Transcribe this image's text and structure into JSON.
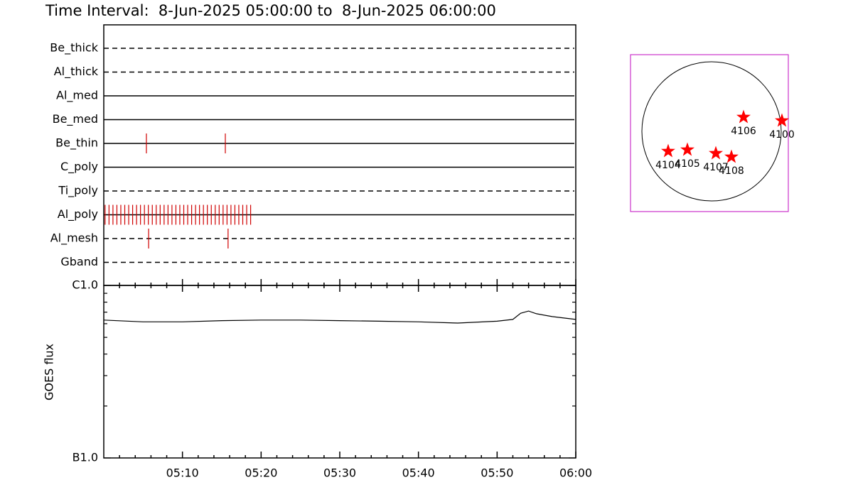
{
  "chart_data": [
    {
      "type": "timeline",
      "title": "Time Interval:  8-Jun-2025 05:00:00 to  8-Jun-2025 06:00:00",
      "categories": [
        "Be_thick",
        "Al_thick",
        "Al_med",
        "Be_med",
        "Be_thin",
        "C_poly",
        "Ti_poly",
        "Al_poly",
        "Al_mesh",
        "Gband"
      ],
      "styles": [
        "dashed",
        "dashed",
        "solid",
        "solid",
        "solid",
        "solid",
        "dashed",
        "solid",
        "dashed",
        "dashed"
      ],
      "color": "#d00000",
      "xlim": [
        "05:00:00",
        "06:00:00"
      ],
      "events": [
        [],
        [],
        [],
        [],
        [
          "05:05:25",
          "05:15:27"
        ],
        [],
        [],
        [
          "05:00:10",
          "05:00:40",
          "05:01:10",
          "05:01:40",
          "05:02:10",
          "05:02:40",
          "05:03:10",
          "05:03:40",
          "05:04:10",
          "05:04:40",
          "05:05:10",
          "05:05:40",
          "05:06:10",
          "05:06:40",
          "05:07:10",
          "05:07:40",
          "05:08:10",
          "05:08:40",
          "05:09:10",
          "05:09:40",
          "05:10:10",
          "05:10:40",
          "05:11:10",
          "05:11:40",
          "05:12:10",
          "05:12:40",
          "05:13:10",
          "05:13:40",
          "05:14:10",
          "05:14:40",
          "05:15:10",
          "05:15:40",
          "05:16:10",
          "05:16:40",
          "05:17:10",
          "05:17:40",
          "05:18:10",
          "05:18:40"
        ],
        [
          "05:05:42",
          "05:15:48"
        ],
        []
      ]
    },
    {
      "type": "line",
      "ylabel": "GOES flux",
      "log": true,
      "color": "#000000",
      "xlim": [
        "05:00:00",
        "06:00:00"
      ],
      "xticks": [
        "05:10",
        "05:20",
        "05:30",
        "05:40",
        "05:50",
        "06:00"
      ],
      "xminorticks": [
        "05:02",
        "05:04",
        "05:06",
        "05:08",
        "05:12",
        "05:14",
        "05:16",
        "05:18",
        "05:22",
        "05:24",
        "05:26",
        "05:28",
        "05:32",
        "05:34",
        "05:36",
        "05:38",
        "05:42",
        "05:44",
        "05:46",
        "05:48",
        "05:52",
        "05:54",
        "05:56",
        "05:58"
      ],
      "ylim": [
        1e-07,
        1e-06
      ],
      "yticks": [
        {
          "value": 1e-07,
          "label": "B1.0"
        },
        {
          "value": 1e-06,
          "label": "C1.0"
        }
      ],
      "yminorticks": [
        2e-07,
        3e-07,
        4e-07,
        5e-07,
        6e-07,
        7e-07,
        8e-07,
        9e-07
      ],
      "x": [
        "05:00",
        "05:05",
        "05:10",
        "05:15",
        "05:20",
        "05:25",
        "05:30",
        "05:35",
        "05:40",
        "05:45",
        "05:50",
        "05:52",
        "05:53",
        "05:54",
        "05:55",
        "05:57",
        "06:00"
      ],
      "values": [
        6.3e-07,
        6.15e-07,
        6.15e-07,
        6.25e-07,
        6.3e-07,
        6.3e-07,
        6.25e-07,
        6.2e-07,
        6.15e-07,
        6.05e-07,
        6.2e-07,
        6.35e-07,
        6.9e-07,
        7.1e-07,
        6.85e-07,
        6.6e-07,
        6.35e-07
      ]
    },
    {
      "type": "disk",
      "color": "#ff0000",
      "frame_color": "#cc33cc",
      "labels": [
        "4106",
        "4100",
        "4104",
        "4105",
        "4107",
        "4108"
      ],
      "x": [
        441,
        970,
        -598,
        -333,
        59,
        274
      ],
      "y": [
        196,
        147,
        -274,
        -255,
        -304,
        -353
      ]
    }
  ]
}
